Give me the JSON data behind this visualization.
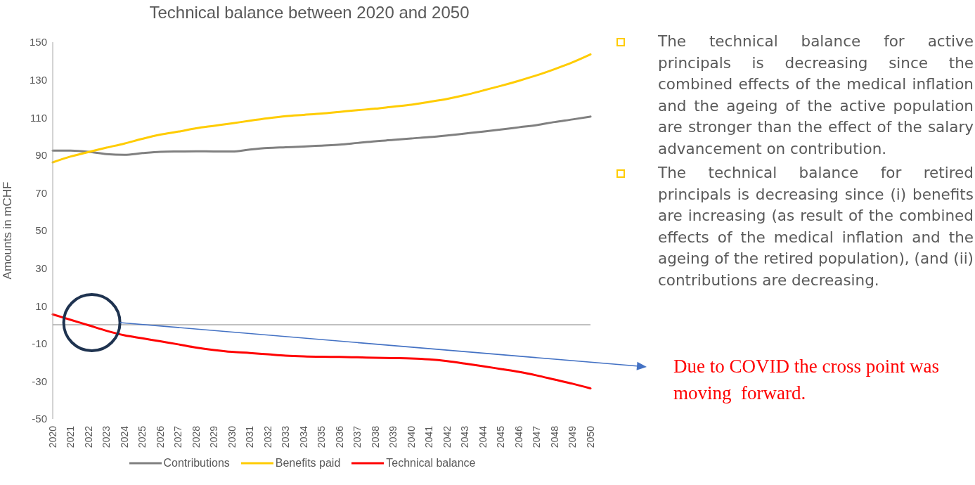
{
  "chart_data": {
    "type": "line",
    "title": "Technical balance between 2020 and 2050",
    "ylabel": "Amounts in mCHF",
    "categories": [
      "2020",
      "2021",
      "2022",
      "2023",
      "2024",
      "2025",
      "2026",
      "2027",
      "2028",
      "2029",
      "2030",
      "2031",
      "2032",
      "2033",
      "2034",
      "2035",
      "2036",
      "2037",
      "2038",
      "2039",
      "2040",
      "2041",
      "2042",
      "2043",
      "2044",
      "2045",
      "2046",
      "2047",
      "2048",
      "2049",
      "2050"
    ],
    "series": [
      {
        "name": "Contributions",
        "color": "#808080",
        "values": [
          92.4,
          92.4,
          91.8,
          90.6,
          90.2,
          91.1,
          91.8,
          92.0,
          92.1,
          92.0,
          92.0,
          93.0,
          93.8,
          94.2,
          94.6,
          95.1,
          95.6,
          96.5,
          97.4,
          98.1,
          98.9,
          99.6,
          100.5,
          101.5,
          102.5,
          103.6,
          104.8,
          106.0,
          107.6,
          109.0,
          110.5
        ]
      },
      {
        "name": "Benefits paid",
        "color": "#ffcc00",
        "values": [
          86.2,
          89.3,
          91.7,
          94.0,
          96.2,
          98.7,
          100.9,
          102.5,
          104.3,
          105.6,
          106.9,
          108.3,
          109.6,
          110.7,
          111.4,
          112.1,
          113.0,
          113.9,
          114.7,
          115.8,
          116.8,
          118.3,
          119.9,
          121.9,
          124.3,
          126.8,
          129.5,
          132.4,
          135.7,
          139.3,
          143.5
        ]
      },
      {
        "name": "Technical balance",
        "color": "#ff0000",
        "values": [
          5.5,
          2.6,
          -0.3,
          -3.2,
          -5.6,
          -7.2,
          -8.8,
          -10.4,
          -12.1,
          -13.4,
          -14.4,
          -15.0,
          -15.7,
          -16.4,
          -16.8,
          -17.0,
          -17.1,
          -17.3,
          -17.5,
          -17.7,
          -17.9,
          -18.4,
          -19.3,
          -20.6,
          -22.0,
          -23.5,
          -25.0,
          -26.9,
          -29.1,
          -31.3,
          -33.8
        ]
      }
    ],
    "ylim": [
      -50,
      150
    ],
    "yticks": [
      -50,
      -30,
      -10,
      10,
      30,
      50,
      70,
      90,
      110,
      130,
      150
    ],
    "ref_lines": [
      {
        "axis": "y",
        "value": 0,
        "color": "#808080"
      }
    ],
    "annotations": [
      "The technical balance for active principals is decreasing since the combined effects of the medical inflation and the ageing of the active population are stronger than the effect of the salary advancement on contribution.",
      "The technical balance for retired principals is decreasing since (i) benefits are increasing (as result of the combined effects of the medical inflation and the ageing of the retired population), (and (ii) contributions are decreasing.",
      "Due to COVID the cross point was moving  forward."
    ],
    "grid": false,
    "legend": "bottom",
    "marker": "none",
    "line_style": "solid"
  }
}
